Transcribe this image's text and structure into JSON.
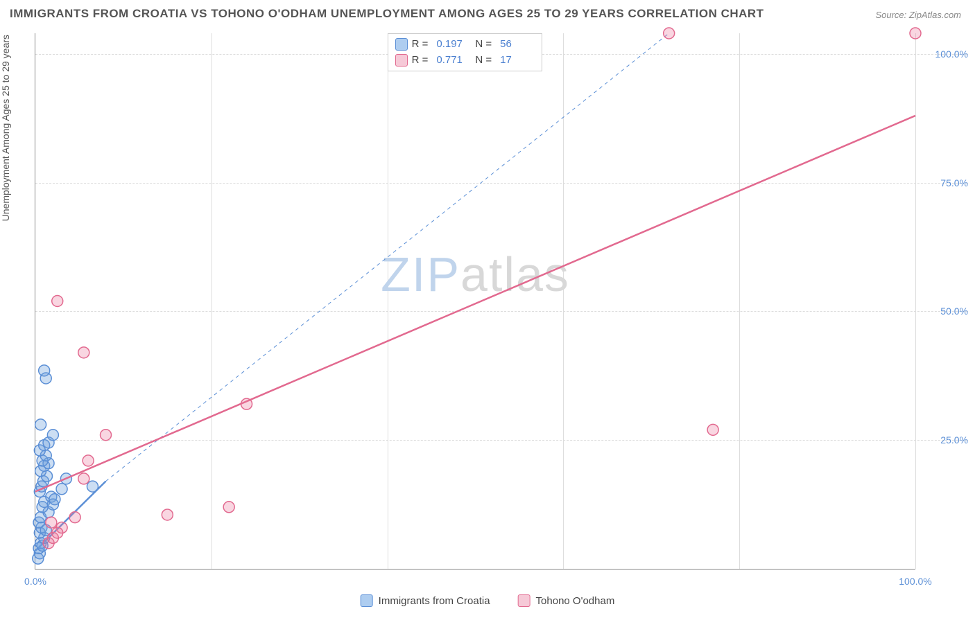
{
  "title": "IMMIGRANTS FROM CROATIA VS TOHONO O'ODHAM UNEMPLOYMENT AMONG AGES 25 TO 29 YEARS CORRELATION CHART",
  "source": "Source: ZipAtlas.com",
  "y_axis_label": "Unemployment Among Ages 25 to 29 years",
  "watermark": {
    "part1": "ZIP",
    "part2": "atlas"
  },
  "chart": {
    "type": "scatter",
    "xlim": [
      0,
      100
    ],
    "ylim": [
      0,
      104
    ],
    "x_ticks": [
      0,
      20,
      40,
      60,
      80,
      100
    ],
    "x_tick_labels": [
      "0.0%",
      "",
      "",
      "",
      "",
      "100.0%"
    ],
    "y_ticks": [
      25,
      50,
      75,
      100
    ],
    "y_tick_labels": [
      "25.0%",
      "50.0%",
      "75.0%",
      "100.0%"
    ],
    "grid_color": "#dddddd",
    "axis_color": "#888888",
    "background_color": "#ffffff",
    "marker_radius": 8,
    "marker_stroke_width": 1.5,
    "series": [
      {
        "name": "Immigrants from Croatia",
        "color_fill": "rgba(108,160,220,0.35)",
        "color_stroke": "#5b8fd6",
        "swatch_fill": "#aecdf0",
        "swatch_stroke": "#5b8fd6",
        "R": "0.197",
        "N": "56",
        "points": [
          [
            0.3,
            2
          ],
          [
            0.5,
            3
          ],
          [
            0.4,
            4
          ],
          [
            0.6,
            5
          ],
          [
            0.8,
            4.5
          ],
          [
            1.0,
            6
          ],
          [
            0.5,
            7
          ],
          [
            0.7,
            8
          ],
          [
            1.2,
            7.5
          ],
          [
            0.4,
            9
          ],
          [
            0.6,
            10
          ],
          [
            1.5,
            11
          ],
          [
            0.8,
            12
          ],
          [
            1.0,
            13
          ],
          [
            1.8,
            14
          ],
          [
            2.0,
            12.5
          ],
          [
            2.2,
            13.5
          ],
          [
            0.5,
            15
          ],
          [
            0.7,
            16
          ],
          [
            3.0,
            15.5
          ],
          [
            0.9,
            17
          ],
          [
            1.3,
            18
          ],
          [
            3.5,
            17.5
          ],
          [
            0.6,
            19
          ],
          [
            1.0,
            20
          ],
          [
            1.5,
            20.5
          ],
          [
            6.5,
            16
          ],
          [
            0.8,
            21
          ],
          [
            1.2,
            22
          ],
          [
            0.5,
            23
          ],
          [
            1.0,
            24
          ],
          [
            1.5,
            24.5
          ],
          [
            2.0,
            26
          ],
          [
            0.6,
            28
          ],
          [
            1.2,
            37
          ],
          [
            1.0,
            38.5
          ]
        ],
        "trend_solid": {
          "x1": 0,
          "y1": 3.5,
          "x2": 8,
          "y2": 17,
          "width": 2.5
        },
        "trend_dashed": {
          "x1": 8,
          "y1": 17,
          "x2": 72,
          "y2": 104,
          "width": 1,
          "dash": "5,5"
        }
      },
      {
        "name": "Tohono O'odham",
        "color_fill": "rgba(235,120,155,0.30)",
        "color_stroke": "#e2698f",
        "swatch_fill": "#f6c9d7",
        "swatch_stroke": "#e2698f",
        "R": "0.771",
        "N": "17",
        "points": [
          [
            1.5,
            5
          ],
          [
            2.0,
            6
          ],
          [
            3.0,
            8
          ],
          [
            1.8,
            9
          ],
          [
            2.5,
            7
          ],
          [
            4.5,
            10
          ],
          [
            15,
            10.5
          ],
          [
            22,
            12
          ],
          [
            5.5,
            17.5
          ],
          [
            6.0,
            21
          ],
          [
            8.0,
            26
          ],
          [
            24,
            32
          ],
          [
            5.5,
            42
          ],
          [
            2.5,
            52
          ],
          [
            77,
            27
          ],
          [
            72,
            104
          ],
          [
            100,
            104
          ]
        ],
        "trend_solid": {
          "x1": 0,
          "y1": 15,
          "x2": 100,
          "y2": 88,
          "width": 2.5
        }
      }
    ]
  },
  "legend_top": {
    "rows": [
      {
        "swatch_series": 0,
        "label_R": "R =",
        "label_N": "N ="
      },
      {
        "swatch_series": 1,
        "label_R": "R =",
        "label_N": "N ="
      }
    ]
  },
  "legend_bottom": {
    "items": [
      {
        "swatch_series": 0
      },
      {
        "swatch_series": 1
      }
    ]
  }
}
